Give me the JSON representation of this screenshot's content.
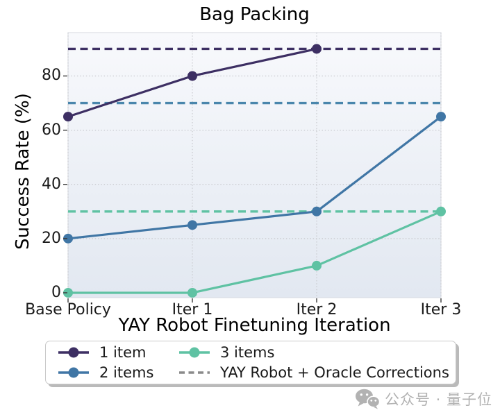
{
  "chart_data": {
    "type": "line",
    "title": "Bag Packing",
    "xlabel": "YAY Robot Finetuning Iteration",
    "ylabel": "Success Rate (%)",
    "categories": [
      "Base Policy",
      "Iter 1",
      "Iter 2",
      "Iter 3"
    ],
    "y_ticks": [
      0,
      20,
      40,
      60,
      80
    ],
    "ylim": [
      -1.8,
      96
    ],
    "grid": "dotted",
    "plot_background": {
      "top": "#f8f9fc",
      "bottom": "#e2e8f1"
    },
    "series": [
      {
        "name": "1 item",
        "color": "#3d2f63",
        "values": [
          65,
          80,
          90,
          null
        ]
      },
      {
        "name": "2 items",
        "color": "#4076a5",
        "values": [
          20,
          25,
          30,
          65
        ]
      },
      {
        "name": "3 items",
        "color": "#5fc2a3",
        "values": [
          0,
          0,
          10,
          30
        ]
      }
    ],
    "reference_lines": [
      {
        "name": "oracle-1-item",
        "style": "dashed",
        "color": "#3d2f63",
        "value": 90
      },
      {
        "name": "oracle-2-items",
        "style": "dashed",
        "color": "#4a86ac",
        "value": 70
      },
      {
        "name": "oracle-3-items",
        "style": "dashed",
        "color": "#5fc2a3",
        "value": 30
      }
    ],
    "legend": {
      "position": "bottom",
      "columns": 2,
      "entries": [
        {
          "label": "1 item",
          "sample": "line-marker",
          "color": "#3d2f63"
        },
        {
          "label": "2 items",
          "sample": "line-marker",
          "color": "#4076a5"
        },
        {
          "label": "3 items",
          "sample": "line-marker",
          "color": "#5fc2a3"
        },
        {
          "label": "YAY Robot + Oracle Corrections",
          "sample": "dashed",
          "color": "#8a8a8a"
        }
      ]
    }
  },
  "watermark": {
    "text": "公众号 · 量子位",
    "icon": "wechat-icon",
    "color": "#b2b2b2"
  }
}
